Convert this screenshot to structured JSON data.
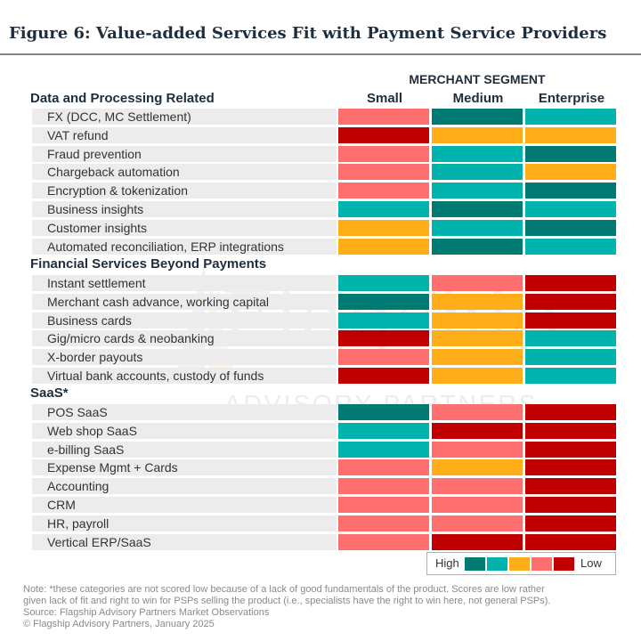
{
  "figure_title": "Figure 6: Value-added Services Fit with Payment Service Providers",
  "watermark": {
    "name": "Flagship",
    "subtitle": "ADVISORY PARTNERS"
  },
  "colors": {
    "dark_teal": "#007a72",
    "teal": "#00b3ad",
    "orange": "#ffae1a",
    "salmon": "#ff6f6f",
    "red": "#c00000",
    "row_bg": "#ececec"
  },
  "chart_data": {
    "type": "table",
    "header": "MERCHANT SEGMENT",
    "columns": [
      "Small",
      "Medium",
      "Enterprise"
    ],
    "scale": [
      "dark_teal",
      "teal",
      "orange",
      "salmon",
      "red"
    ],
    "sections": [
      {
        "title": "Data and Processing Related",
        "rows": [
          {
            "label": "FX (DCC, MC Settlement)",
            "values": [
              "salmon",
              "dark_teal",
              "teal"
            ]
          },
          {
            "label": "VAT refund",
            "values": [
              "red",
              "orange",
              "orange"
            ]
          },
          {
            "label": "Fraud prevention",
            "values": [
              "salmon",
              "teal",
              "dark_teal"
            ]
          },
          {
            "label": "Chargeback automation",
            "values": [
              "salmon",
              "teal",
              "orange"
            ]
          },
          {
            "label": "Encryption & tokenization",
            "values": [
              "salmon",
              "teal",
              "dark_teal"
            ]
          },
          {
            "label": "Business insights",
            "values": [
              "teal",
              "dark_teal",
              "teal"
            ]
          },
          {
            "label": "Customer insights",
            "values": [
              "orange",
              "teal",
              "dark_teal"
            ]
          },
          {
            "label": "Automated reconciliation, ERP integrations",
            "values": [
              "orange",
              "dark_teal",
              "teal"
            ]
          }
        ]
      },
      {
        "title": "Financial Services Beyond Payments",
        "rows": [
          {
            "label": "Instant settlement",
            "values": [
              "teal",
              "salmon",
              "red"
            ]
          },
          {
            "label": "Merchant cash advance, working capital",
            "values": [
              "dark_teal",
              "orange",
              "red"
            ]
          },
          {
            "label": "Business cards",
            "values": [
              "teal",
              "orange",
              "red"
            ]
          },
          {
            "label": "Gig/micro cards & neobanking",
            "values": [
              "red",
              "orange",
              "teal"
            ]
          },
          {
            "label": "X-border payouts",
            "values": [
              "salmon",
              "orange",
              "teal"
            ]
          },
          {
            "label": "Virtual bank accounts, custody of funds",
            "values": [
              "red",
              "orange",
              "teal"
            ]
          }
        ]
      },
      {
        "title": "SaaS*",
        "rows": [
          {
            "label": "POS SaaS",
            "values": [
              "dark_teal",
              "salmon",
              "red"
            ]
          },
          {
            "label": "Web shop SaaS",
            "values": [
              "teal",
              "red",
              "red"
            ]
          },
          {
            "label": "e-billing SaaS",
            "values": [
              "teal",
              "salmon",
              "red"
            ]
          },
          {
            "label": "Expense Mgmt + Cards",
            "values": [
              "salmon",
              "orange",
              "red"
            ]
          },
          {
            "label": "Accounting",
            "values": [
              "salmon",
              "salmon",
              "red"
            ]
          },
          {
            "label": "CRM",
            "values": [
              "salmon",
              "salmon",
              "red"
            ]
          },
          {
            "label": "HR, payroll",
            "values": [
              "salmon",
              "salmon",
              "red"
            ]
          },
          {
            "label": "Vertical ERP/SaaS",
            "values": [
              "salmon",
              "red",
              "red"
            ]
          }
        ]
      }
    ],
    "legend": {
      "high_label": "High",
      "low_label": "Low"
    }
  },
  "footnotes": [
    "Note: *these categories are not scored low because of a lack of good fundamentals of the product.  Scores are low rather",
    "given lack of fit and right to win for PSPs selling the product (i.e., specialists have the right to win here, not general PSPs).",
    "Source: Flagship Advisory Partners Market Observations",
    "© Flagship Advisory Partners, January 2025"
  ]
}
